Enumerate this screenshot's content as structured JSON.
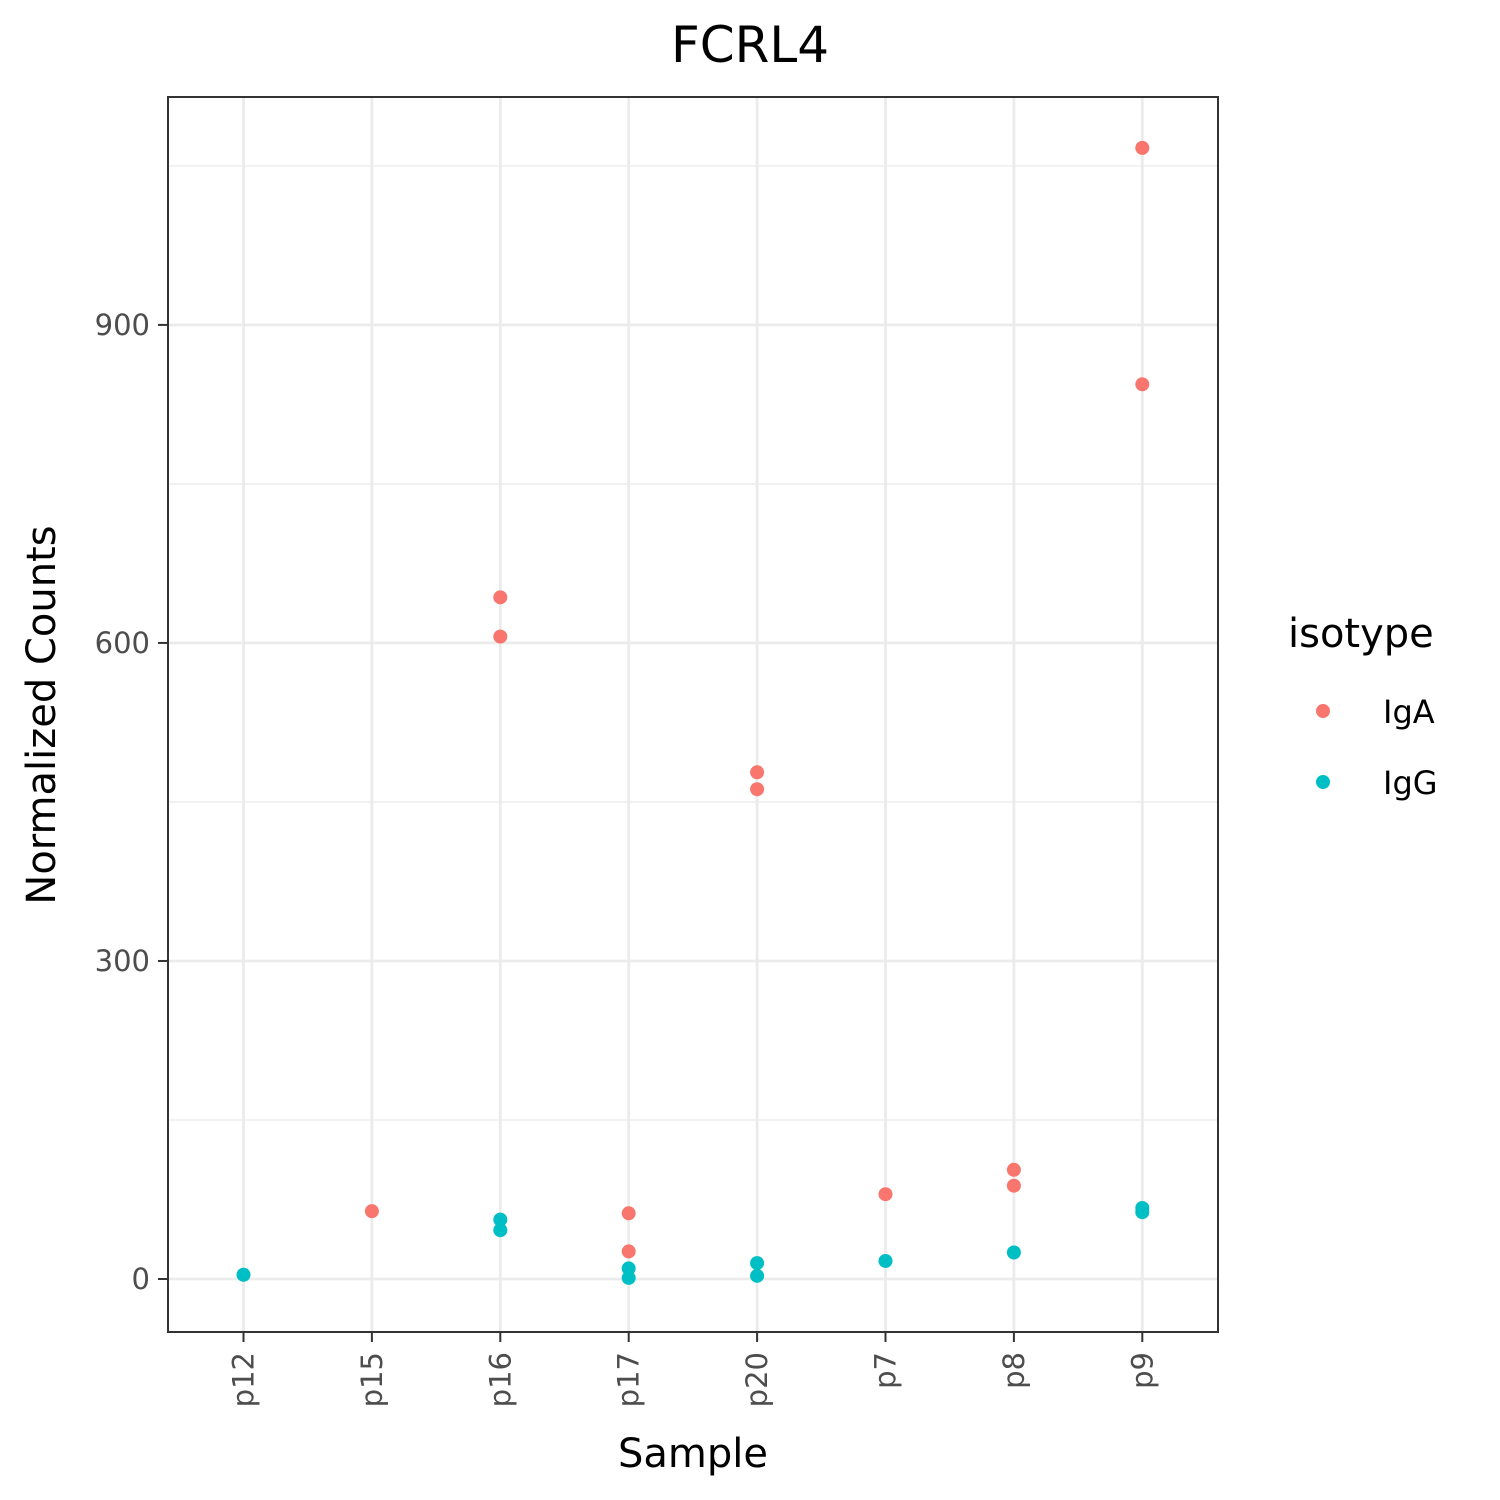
{
  "chart_data": {
    "type": "scatter",
    "title": "FCRL4",
    "xlabel": "Sample",
    "ylabel": "Normalized Counts",
    "categories": [
      "p12",
      "p15",
      "p16",
      "p17",
      "p20",
      "p7",
      "p8",
      "p9"
    ],
    "ylim": [
      -50,
      1115
    ],
    "yticks": [
      0,
      300,
      600,
      900
    ],
    "grid": true,
    "legend": {
      "title": "isotype",
      "placement": "right"
    },
    "series": [
      {
        "name": "IgA",
        "color": "#F8766D",
        "points": [
          {
            "x": "p15",
            "y": 64
          },
          {
            "x": "p16",
            "y": 643
          },
          {
            "x": "p16",
            "y": 606
          },
          {
            "x": "p17",
            "y": 62
          },
          {
            "x": "p17",
            "y": 26
          },
          {
            "x": "p20",
            "y": 478
          },
          {
            "x": "p20",
            "y": 462
          },
          {
            "x": "p7",
            "y": 80
          },
          {
            "x": "p8",
            "y": 103
          },
          {
            "x": "p8",
            "y": 88
          },
          {
            "x": "p9",
            "y": 1067
          },
          {
            "x": "p9",
            "y": 844
          }
        ]
      },
      {
        "name": "IgG",
        "color": "#00BFC4",
        "points": [
          {
            "x": "p12",
            "y": 4
          },
          {
            "x": "p16",
            "y": 56
          },
          {
            "x": "p16",
            "y": 46
          },
          {
            "x": "p17",
            "y": 10
          },
          {
            "x": "p17",
            "y": 1
          },
          {
            "x": "p20",
            "y": 15
          },
          {
            "x": "p20",
            "y": 3
          },
          {
            "x": "p7",
            "y": 17
          },
          {
            "x": "p8",
            "y": 25
          },
          {
            "x": "p9",
            "y": 67
          },
          {
            "x": "p9",
            "y": 63
          }
        ]
      }
    ]
  }
}
